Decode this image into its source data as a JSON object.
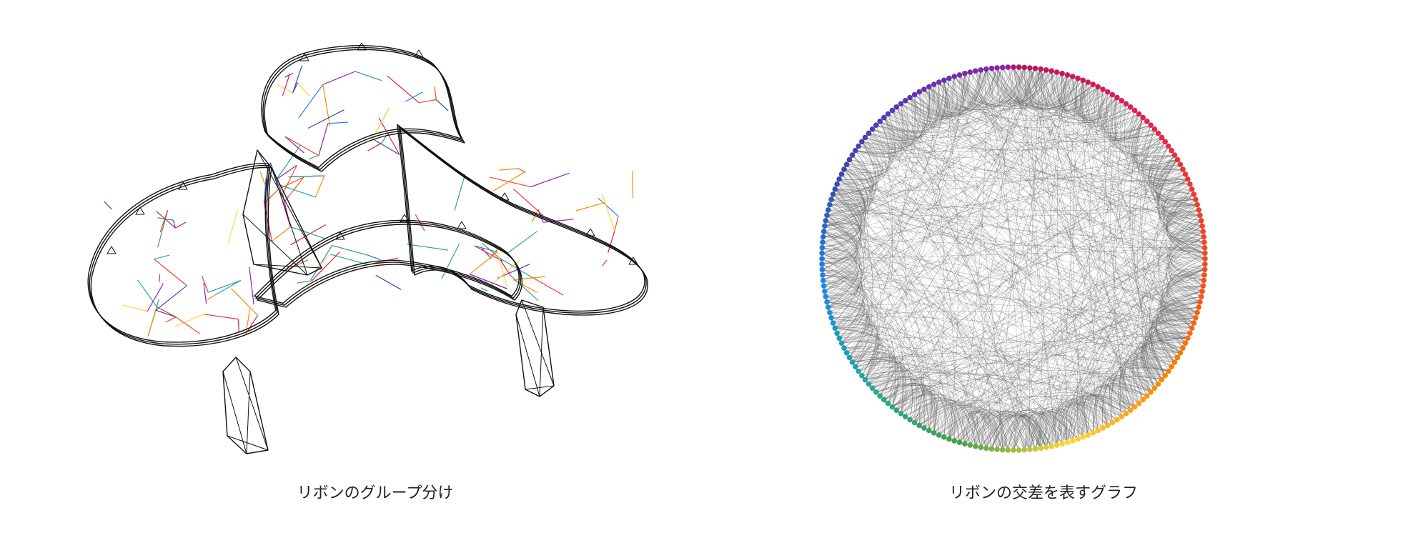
{
  "figures": [
    {
      "name": "ribbon-structure",
      "caption": "リボンのグループ分け",
      "colors": [
        "#e53935",
        "#fb8c00",
        "#fdd835",
        "#43a047",
        "#1e88e5",
        "#3949ab",
        "#8e24aa",
        "#d81b60",
        "#26a69a",
        "#f4511e"
      ],
      "outline_color": "#111111"
    },
    {
      "name": "ribbon-intersection-graph",
      "caption": "リボンの交差を表すグラフ",
      "node_count": 220,
      "edge_color": "#666666",
      "node_gradient": [
        "#b0195c",
        "#d81b60",
        "#e53935",
        "#f4511e",
        "#fb8c00",
        "#fdd835",
        "#43a047",
        "#26a69a",
        "#1e88e5",
        "#3949ab",
        "#5e35b1",
        "#8e24aa"
      ]
    }
  ]
}
